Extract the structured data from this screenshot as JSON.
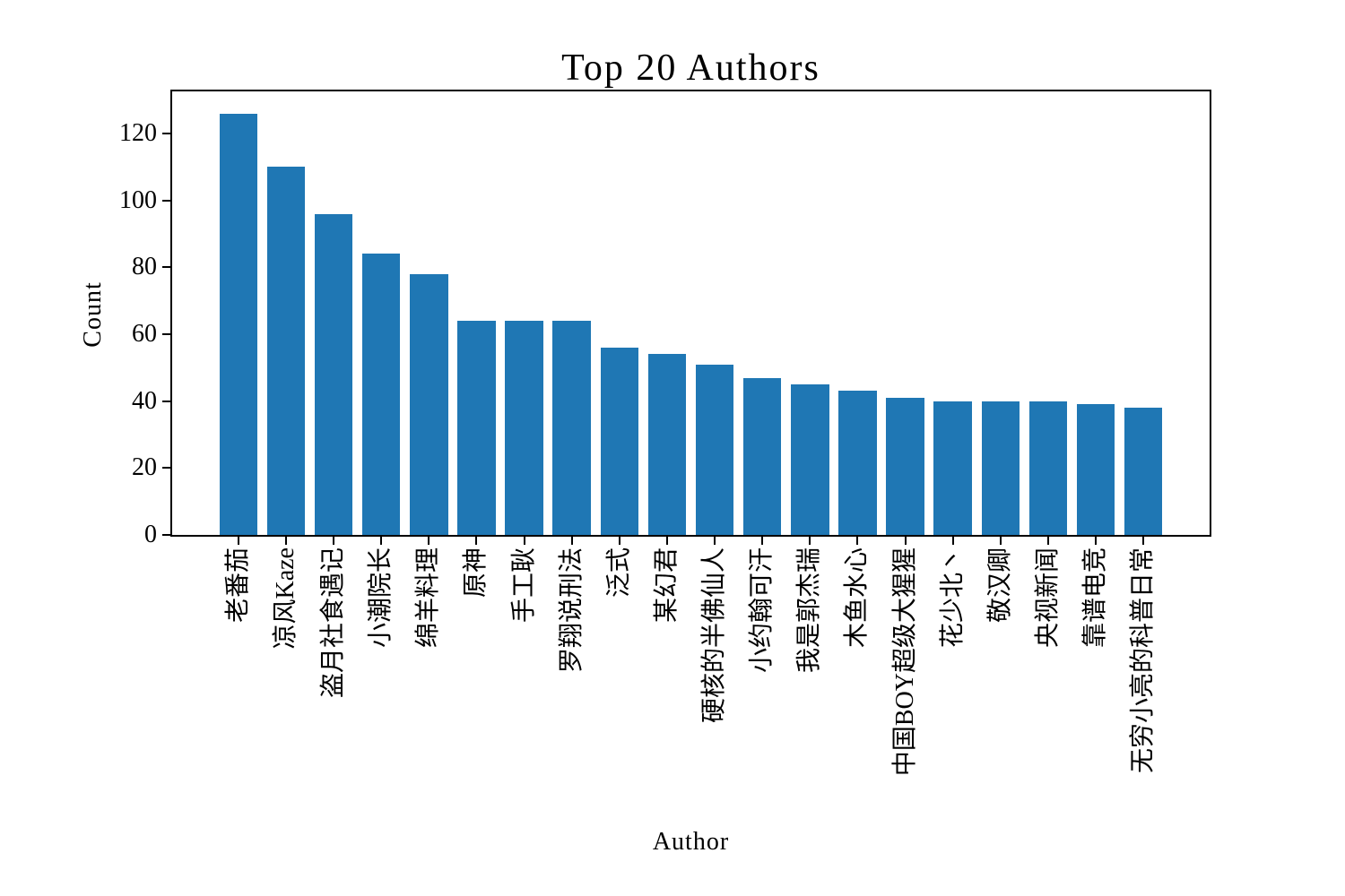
{
  "chart_data": {
    "type": "bar",
    "title": "Top 20 Authors",
    "xlabel": "Author",
    "ylabel": "Count",
    "categories": [
      "老番茄",
      "凉风Kaze",
      "盗月社食遇记",
      "小潮院长",
      "绵羊料理",
      "原神",
      "手工耿",
      "罗翔说刑法",
      "泛式",
      "某幻君",
      "硬核的半佛仙人",
      "小约翰可汗",
      "我是郭杰瑞",
      "木鱼水心",
      "中国BOY超级大猩猩",
      "花少北丶",
      "敬汉卿",
      "央视新闻",
      "靠谱电竞",
      "无穷小亮的科普日常"
    ],
    "values": [
      126,
      110,
      96,
      84,
      78,
      64,
      64,
      64,
      56,
      54,
      51,
      47,
      45,
      43,
      41,
      40,
      40,
      40,
      39,
      38
    ],
    "yticks": [
      0,
      20,
      40,
      60,
      80,
      100,
      120
    ],
    "ylim": [
      0,
      132.6
    ],
    "bar_color": "#1f77b4",
    "grid": false,
    "legend_position": "none",
    "x_tick_rotation": 90
  }
}
